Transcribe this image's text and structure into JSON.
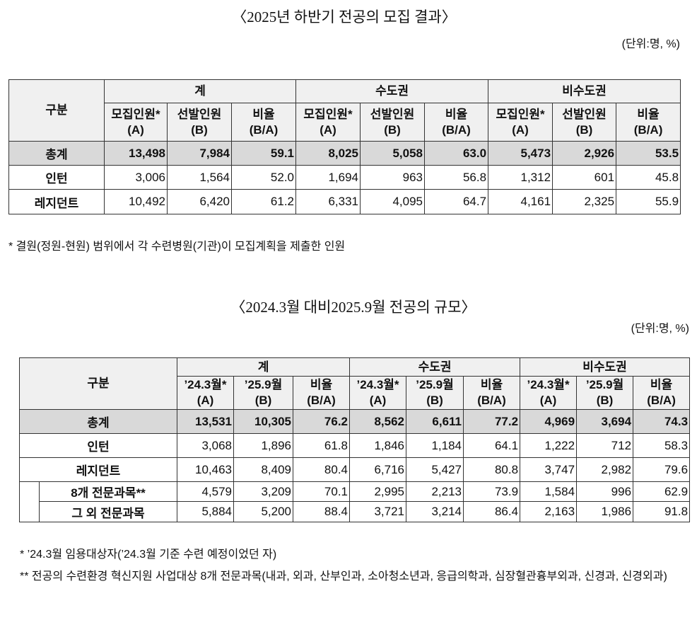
{
  "table1": {
    "title": "〈2025년 하반기 전공의 모집 결과〉",
    "unit": "(단위:명, %)",
    "corner": "구분",
    "groups": [
      "계",
      "수도권",
      "비수도권"
    ],
    "subheaders": [
      {
        "name": "모집인원*",
        "sub": "(A)"
      },
      {
        "name": "선발인원",
        "sub": "(B)"
      },
      {
        "name": "비율",
        "sub": "(B/A)"
      },
      {
        "name": "모집인원*",
        "sub": "(A)"
      },
      {
        "name": "선발인원",
        "sub": "(B)"
      },
      {
        "name": "비율",
        "sub": "(B/A)"
      },
      {
        "name": "모집인원*",
        "sub": "(A)"
      },
      {
        "name": "선발인원",
        "sub": "(B)"
      },
      {
        "name": "비율",
        "sub": "(B/A)"
      }
    ],
    "rows": [
      {
        "label": "총계",
        "cells": [
          "13,498",
          "7,984",
          "59.1",
          "8,025",
          "5,058",
          "63.0",
          "5,473",
          "2,926",
          "53.5"
        ]
      },
      {
        "label": "인턴",
        "cells": [
          "3,006",
          "1,564",
          "52.0",
          "1,694",
          "963",
          "56.8",
          "1,312",
          "601",
          "45.8"
        ]
      },
      {
        "label": "레지던트",
        "cells": [
          "10,492",
          "6,420",
          "61.2",
          "6,331",
          "4,095",
          "64.7",
          "4,161",
          "2,325",
          "55.9"
        ]
      }
    ],
    "notes": [
      "* 결원(정원-현원) 범위에서 각 수련병원(기관)이 모집계획을 제출한 인원"
    ]
  },
  "table2": {
    "title": "〈2024.3월 대비2025.9월 전공의 규모〉",
    "unit": "(단위:명, %)",
    "corner": "구분",
    "groups": [
      "계",
      "수도권",
      "비수도권"
    ],
    "subheaders": [
      {
        "name": "’24.3월*",
        "sub": "(A)"
      },
      {
        "name": "’25.9월",
        "sub": "(B)"
      },
      {
        "name": "비율",
        "sub": "(B/A)"
      },
      {
        "name": "’24.3월*",
        "sub": "(A)"
      },
      {
        "name": "’25.9월",
        "sub": "(B)"
      },
      {
        "name": "비율",
        "sub": "(B/A)"
      },
      {
        "name": "’24.3월*",
        "sub": "(A)"
      },
      {
        "name": "’25.9월",
        "sub": "(B)"
      },
      {
        "name": "비율",
        "sub": "(B/A)"
      }
    ],
    "rows": [
      {
        "label": "총계",
        "cells": [
          "13,531",
          "10,305",
          "76.2",
          "8,562",
          "6,611",
          "77.2",
          "4,969",
          "3,694",
          "74.3"
        ]
      },
      {
        "label": "인턴",
        "cells": [
          "3,068",
          "1,896",
          "61.8",
          "1,846",
          "1,184",
          "64.1",
          "1,222",
          "712",
          "58.3"
        ]
      },
      {
        "label": "레지던트",
        "cells": [
          "10,463",
          "8,409",
          "80.4",
          "6,716",
          "5,427",
          "80.8",
          "3,747",
          "2,982",
          "79.6"
        ],
        "children": [
          {
            "label": "8개 전문과목**",
            "cells": [
              "4,579",
              "3,209",
              "70.1",
              "2,995",
              "2,213",
              "73.9",
              "1,584",
              "996",
              "62.9"
            ]
          },
          {
            "label": "그 외 전문과목",
            "cells": [
              "5,884",
              "5,200",
              "88.4",
              "3,721",
              "3,214",
              "86.4",
              "2,163",
              "1,986",
              "91.8"
            ]
          }
        ]
      }
    ],
    "notes": [
      "* ’24.3월 임용대상자(’24.3월 기준 수련 예정이었던 자)",
      "** 전공의 수련환경 혁신지원 사업대상 8개 전문과목(내과, 외과, 산부인과, 소아청소년과, 응급의학과, 심장혈관흉부외과, 신경과, 신경외과)"
    ]
  }
}
